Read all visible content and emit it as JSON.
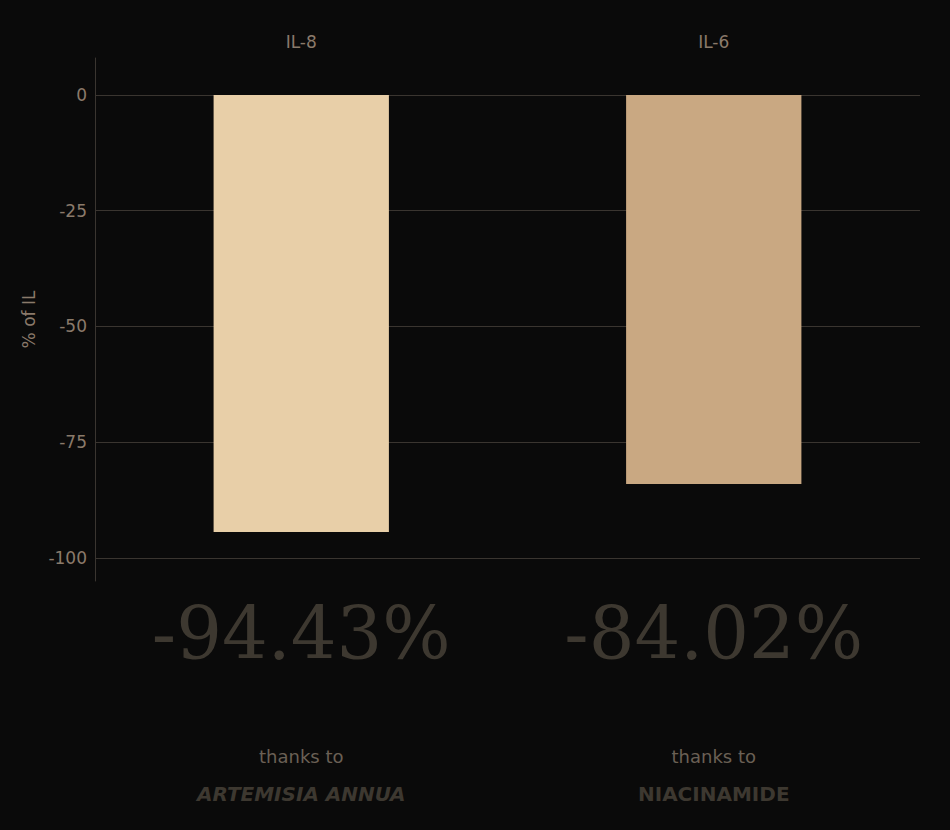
{
  "chart_data": {
    "type": "bar",
    "categories": [
      "IL-8",
      "IL-6"
    ],
    "values": [
      -94.43,
      -84.02
    ],
    "colors": [
      "#e8cfa8",
      "#c9a882"
    ],
    "ylabel": "% of IL",
    "ylim": [
      -105,
      8
    ],
    "yticks": [
      0,
      -25,
      -50,
      -75,
      -100
    ],
    "grid": true,
    "annotations": [
      [
        "-94.43%",
        "thanks to",
        "ARTEMISIA ANNUA"
      ],
      [
        "-84.02%",
        "thanks to",
        "NIACINAMIDE"
      ]
    ]
  }
}
